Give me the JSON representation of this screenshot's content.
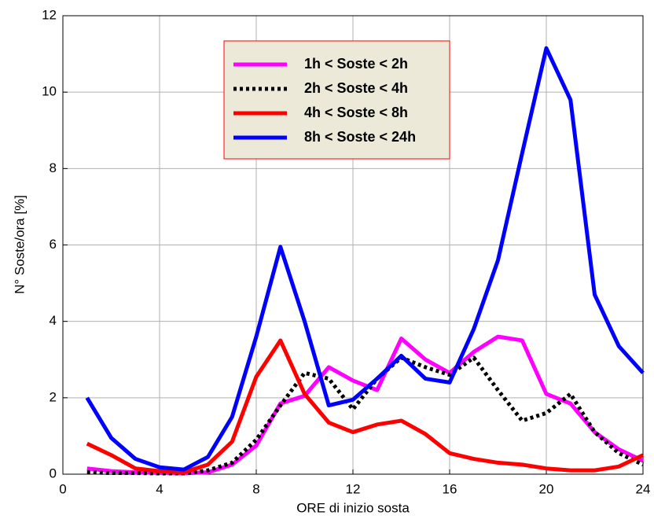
{
  "chart_data": {
    "type": "line",
    "xlabel": "ORE di inizio sosta",
    "ylabel": "N° Soste/ora   [%]",
    "x": [
      1,
      2,
      3,
      4,
      5,
      6,
      7,
      8,
      9,
      10,
      11,
      12,
      13,
      14,
      15,
      16,
      17,
      18,
      19,
      20,
      21,
      22,
      23,
      24
    ],
    "series": [
      {
        "name": "1h < Soste < 2h",
        "color": "#ff00ff",
        "linestyle": "solid",
        "values": [
          0.15,
          0.08,
          0.05,
          0.03,
          0.02,
          0.05,
          0.25,
          0.75,
          1.85,
          2.05,
          2.8,
          2.45,
          2.2,
          3.55,
          3.0,
          2.65,
          3.2,
          3.6,
          3.5,
          2.1,
          1.85,
          1.1,
          0.65,
          0.35
        ]
      },
      {
        "name": "2h < Soste < 4h",
        "color": "#000000",
        "linestyle": "dotted",
        "values": [
          0.05,
          0.03,
          0.03,
          0.02,
          0.02,
          0.1,
          0.3,
          0.9,
          1.8,
          2.65,
          2.5,
          1.7,
          2.5,
          3.05,
          2.8,
          2.6,
          3.05,
          2.2,
          1.4,
          1.6,
          2.1,
          1.1,
          0.55,
          0.25
        ]
      },
      {
        "name": "4h < Soste < 8h",
        "color": "#ff0000",
        "linestyle": "solid",
        "values": [
          0.8,
          0.5,
          0.15,
          0.08,
          0.05,
          0.25,
          0.85,
          2.55,
          3.5,
          2.1,
          1.35,
          1.1,
          1.3,
          1.4,
          1.05,
          0.55,
          0.4,
          0.3,
          0.25,
          0.15,
          0.1,
          0.1,
          0.2,
          0.5
        ]
      },
      {
        "name": "8h < Soste < 24h",
        "color": "#0000ff",
        "linestyle": "solid",
        "values": [
          2.0,
          0.95,
          0.4,
          0.18,
          0.12,
          0.45,
          1.5,
          3.6,
          5.95,
          4.0,
          1.8,
          1.95,
          2.5,
          3.1,
          2.5,
          2.4,
          3.8,
          5.6,
          8.4,
          11.15,
          9.8,
          4.7,
          3.35,
          2.65
        ]
      }
    ],
    "xlim": [
      0,
      24
    ],
    "xticks": [
      0,
      4,
      8,
      12,
      16,
      20,
      24
    ],
    "ylim": [
      0,
      12
    ],
    "yticks": [
      0,
      2,
      4,
      6,
      8,
      10,
      12
    ],
    "grid": true,
    "legend": "top-center"
  }
}
